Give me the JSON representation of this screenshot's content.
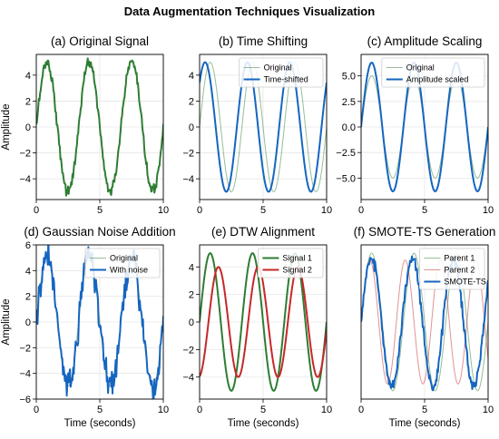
{
  "title": "Data Augmentation Techniques Visualization",
  "colors": {
    "original": "#2e7d32",
    "shifted": "#1565c0",
    "original_faint": "#66bb6a",
    "signal2": "#c62828",
    "parent2": "#e57373",
    "grid": "#e6e6e6"
  },
  "chart_data": [
    {
      "type": "line",
      "title": "(a) Original Signal",
      "xlabel": "",
      "ylabel": "Amplitude",
      "xlim": [
        0,
        10
      ],
      "ylim": [
        -5.6,
        5.6
      ],
      "xticks": [
        0,
        5,
        10
      ],
      "yticks": [
        -4,
        -2,
        0,
        2,
        4
      ],
      "ytick_labels": [
        "−4",
        "−2",
        "0",
        "2",
        "4"
      ],
      "grid": true,
      "legend": null,
      "series": [
        {
          "key": "orig",
          "color": "#2e7d32",
          "width": 2,
          "opacity": 1,
          "function": "5*sin(2*pi*0.3*t) + noise(0.2)",
          "x_range": [
            0,
            10
          ]
        }
      ]
    },
    {
      "type": "line",
      "title": "(b) Time Shifting",
      "xlabel": "",
      "ylabel": "",
      "xlim": [
        0,
        10
      ],
      "ylim": [
        -5.6,
        5.6
      ],
      "xticks": [
        0,
        5,
        10
      ],
      "yticks": [
        -4,
        -2,
        0,
        2,
        4
      ],
      "ytick_labels": [
        "−4",
        "−2",
        "0",
        "2",
        "4"
      ],
      "grid": true,
      "legend": "top-right",
      "series": [
        {
          "key": "orig",
          "name": "Original",
          "color": "#2e7d32",
          "width": 1,
          "opacity": 0.5,
          "function": "5*sin(2*pi*0.3*t)",
          "x_range": [
            0,
            10
          ]
        },
        {
          "key": "shift",
          "name": "Time-shifted",
          "color": "#1565c0",
          "width": 2,
          "opacity": 1,
          "function": "5*sin(2*pi*0.3*(t+0.4))",
          "x_range": [
            0,
            10
          ]
        }
      ]
    },
    {
      "type": "line",
      "title": "(c) Amplitude Scaling",
      "xlabel": "",
      "ylabel": "",
      "xlim": [
        0,
        10
      ],
      "ylim": [
        -7.1,
        7.1
      ],
      "xticks": [
        0,
        5,
        10
      ],
      "yticks": [
        -5,
        -2.5,
        0,
        2.5,
        5
      ],
      "ytick_labels": [
        "−5.0",
        "−2.5",
        "0.0",
        "2.5",
        "5.0"
      ],
      "grid": true,
      "legend": "top-right",
      "series": [
        {
          "key": "orig",
          "name": "Original",
          "color": "#2e7d32",
          "width": 1,
          "opacity": 0.5,
          "function": "5*sin(2*pi*0.3*t)",
          "x_range": [
            0,
            10
          ]
        },
        {
          "key": "scaled",
          "name": "Amplitude scaled",
          "color": "#1565c0",
          "width": 2,
          "opacity": 1,
          "function": "6.3*sin(2*pi*0.3*t)",
          "x_range": [
            0,
            10
          ]
        }
      ]
    },
    {
      "type": "line",
      "title": "(d) Gaussian Noise Addition",
      "xlabel": "Time (seconds)",
      "ylabel": "Amplitude",
      "xlim": [
        0,
        10
      ],
      "ylim": [
        -6,
        6
      ],
      "xticks": [
        0,
        5,
        10
      ],
      "yticks": [
        -6,
        -4,
        -2,
        0,
        2,
        4,
        6
      ],
      "ytick_labels": [
        "−6",
        "−4",
        "−2",
        "0",
        "2",
        "4",
        "6"
      ],
      "grid": true,
      "legend": "top-right",
      "series": [
        {
          "key": "orig",
          "name": "Original",
          "color": "#2e7d32",
          "width": 1,
          "opacity": 0.5,
          "function": "5*sin(2*pi*0.3*t)",
          "x_range": [
            0,
            10
          ]
        },
        {
          "key": "noisy",
          "name": "With noise",
          "color": "#1565c0",
          "width": 2,
          "opacity": 1,
          "function": "5*sin(2*pi*0.3*t) + noise(0.6)",
          "x_range": [
            0,
            10
          ]
        }
      ]
    },
    {
      "type": "line",
      "title": "(e) DTW Alignment",
      "xlabel": "Time (seconds)",
      "ylabel": "",
      "xlim": [
        0,
        10
      ],
      "ylim": [
        -5.6,
        5.6
      ],
      "xticks": [
        0,
        5,
        10
      ],
      "yticks": [
        -4,
        -2,
        0,
        2,
        4
      ],
      "ytick_labels": [
        "−4",
        "−2",
        "0",
        "2",
        "4"
      ],
      "grid": true,
      "legend": "top-right",
      "series": [
        {
          "key": "s1",
          "name": "Signal 1",
          "color": "#2e7d32",
          "width": 2,
          "opacity": 1,
          "function": "5*sin(2*pi*0.3*t)",
          "x_range": [
            0,
            10
          ]
        },
        {
          "key": "s2",
          "name": "Signal 2",
          "color": "#c62828",
          "width": 2,
          "opacity": 1,
          "function": "4*sin(2*pi*0.32*(t-0.7))",
          "x_range": [
            0,
            10
          ]
        }
      ]
    },
    {
      "type": "line",
      "title": "(f) SMOTE-TS Generation",
      "xlabel": "Time (seconds)",
      "ylabel": "",
      "xlim": [
        0,
        10
      ],
      "ylim": [
        -5.6,
        5.6
      ],
      "xticks": [
        0,
        5,
        10
      ],
      "yticks": [],
      "ytick_labels": [],
      "grid": true,
      "legend": "top-right",
      "series": [
        {
          "key": "p1",
          "name": "Parent 1",
          "color": "#2e7d32",
          "width": 1,
          "opacity": 0.5,
          "function": "5*sin(2*pi*0.3*t)",
          "x_range": [
            0,
            10
          ]
        },
        {
          "key": "p2",
          "name": "Parent 2",
          "color": "#c62828",
          "width": 1,
          "opacity": 0.5,
          "function": "4.5*sin(2*pi*0.36*t)",
          "x_range": [
            0,
            10
          ]
        },
        {
          "key": "smote",
          "name": "SMOTE-TS",
          "color": "#1565c0",
          "width": 2,
          "opacity": 1,
          "function": "4.7*sin(2*pi*0.31*t) + noise(0.2)",
          "x_range": [
            0,
            10
          ]
        }
      ]
    }
  ]
}
